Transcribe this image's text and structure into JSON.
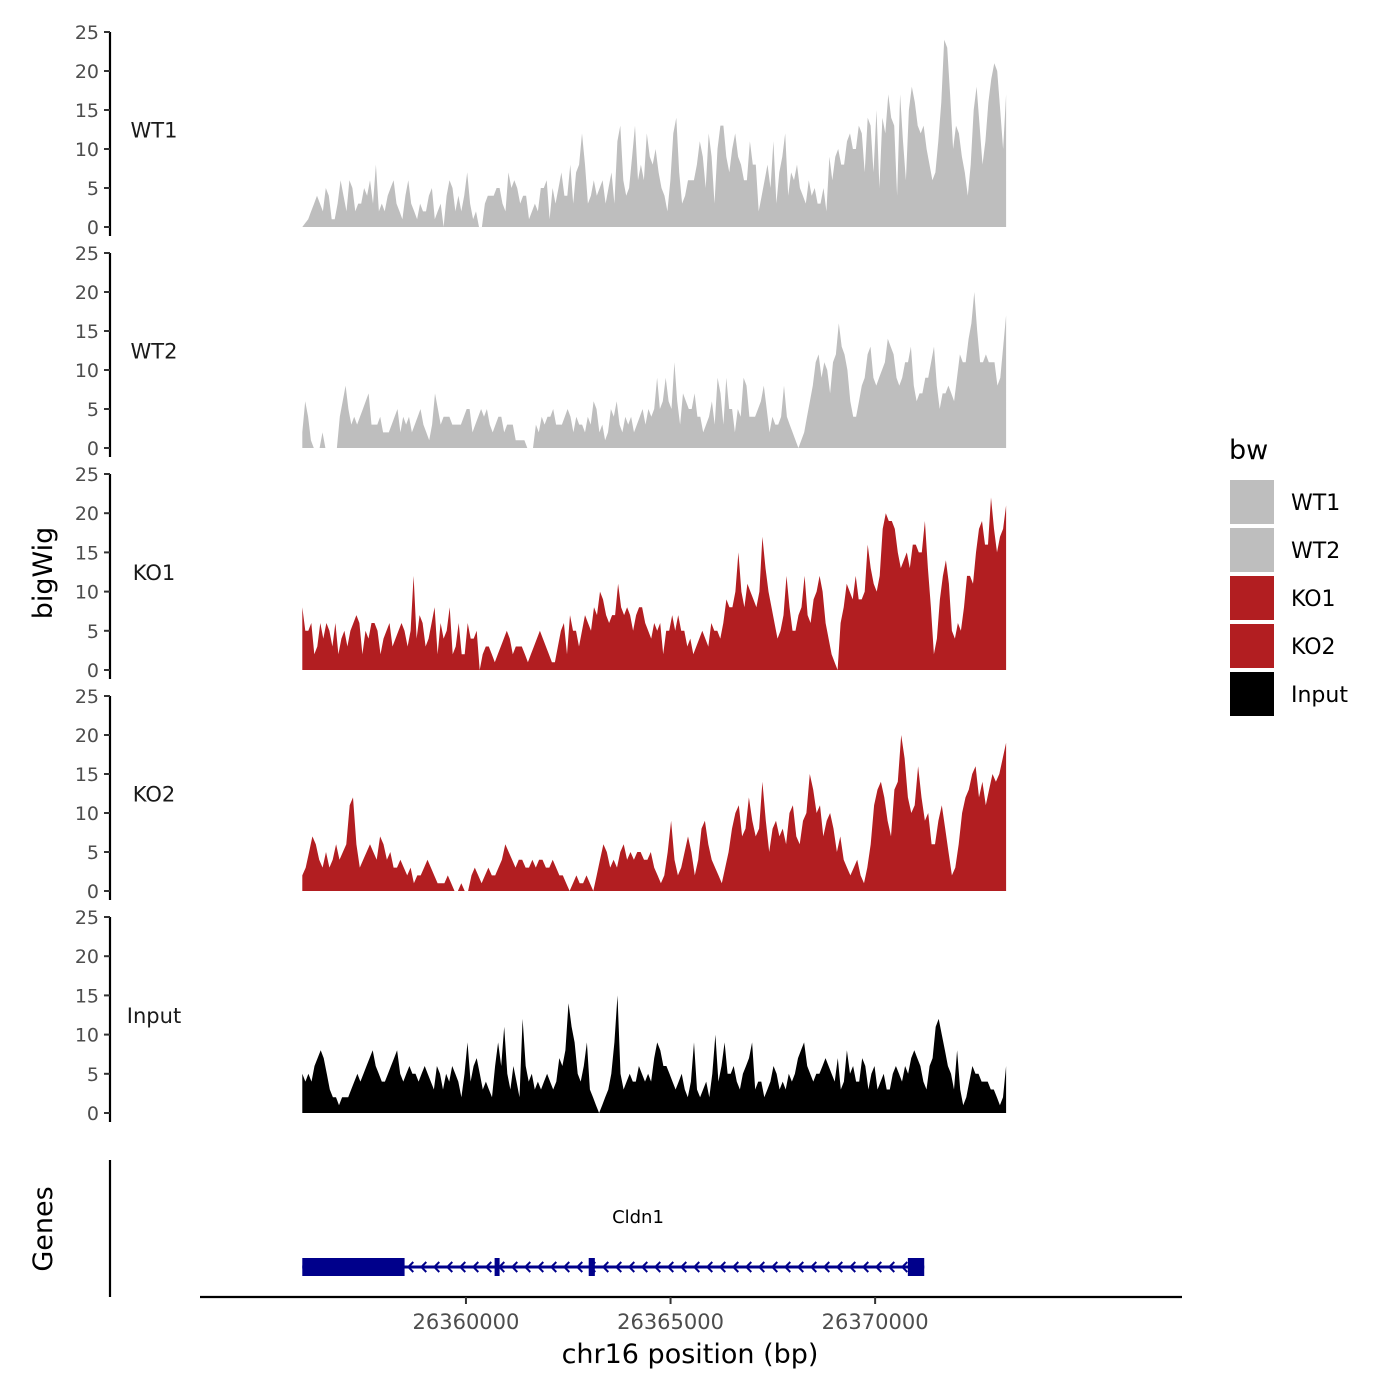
{
  "chart_data": {
    "type": "area",
    "y_axis_title": "bigWig",
    "genes_axis_title": "Genes",
    "x_axis_title": "chr16 position (bp)",
    "xlim": [
      26353500,
      26377500
    ],
    "x_ticks": [
      26360000,
      26365000,
      26370000
    ],
    "x_tick_labels": [
      "26360000",
      "26365000",
      "26370000"
    ],
    "ylim": [
      0,
      25
    ],
    "y_ticks": [
      0,
      5,
      10,
      15,
      20,
      25
    ],
    "y_tick_labels": [
      "0",
      "5",
      "10",
      "15",
      "20",
      "25"
    ],
    "legend": {
      "title": "bw",
      "entries": [
        {
          "label": "WT1",
          "color": "#bebebe"
        },
        {
          "label": "WT2",
          "color": "#bebebe"
        },
        {
          "label": "KO1",
          "color": "#b21e21"
        },
        {
          "label": "KO2",
          "color": "#b21e21"
        },
        {
          "label": "Input",
          "color": "#000000"
        }
      ]
    },
    "tracks": [
      {
        "name": "WT1",
        "color": "#bebebe",
        "x_start": 26356000,
        "x_end": 26373200,
        "values": [
          0,
          0.5,
          1,
          2,
          3,
          4,
          3,
          2,
          5,
          4,
          1,
          1,
          3,
          6,
          4,
          2,
          6,
          5,
          2,
          3,
          3,
          5,
          4,
          6,
          3,
          8,
          2,
          3,
          2,
          4,
          5,
          6,
          3,
          2,
          1,
          4,
          6,
          3,
          2,
          1,
          3,
          2,
          2,
          4,
          5,
          1,
          2,
          3,
          0,
          4,
          6,
          5,
          2,
          4,
          2,
          4,
          7,
          3,
          1,
          2,
          0,
          0,
          3,
          4,
          4,
          4,
          5,
          5,
          3,
          2,
          7,
          5,
          6,
          5,
          3,
          4,
          4,
          1,
          2,
          3,
          2,
          5,
          5,
          6,
          1,
          5,
          3,
          5,
          7,
          4,
          4,
          8,
          3,
          7,
          8,
          12,
          8,
          3,
          4,
          6,
          4,
          5,
          6,
          3,
          5,
          7,
          3,
          11,
          13,
          6,
          4,
          5,
          9,
          13,
          6,
          8,
          6,
          12,
          9,
          8,
          10,
          7,
          5,
          4,
          2,
          6,
          12,
          14,
          7,
          3,
          4,
          6,
          6,
          6,
          8,
          11,
          9,
          5,
          12,
          9,
          3,
          10,
          13,
          13,
          9,
          7,
          10,
          12,
          9,
          8,
          6,
          6,
          11,
          8,
          8,
          2,
          4,
          6,
          8,
          5,
          11,
          3,
          7,
          9,
          12,
          4,
          7,
          6,
          8,
          5,
          4,
          3,
          6,
          4,
          5,
          3,
          3,
          5,
          2,
          9,
          6,
          9,
          10,
          8,
          8,
          11,
          12,
          10,
          10,
          13,
          12,
          7,
          14,
          13,
          7,
          15,
          5,
          14,
          12,
          17,
          14,
          13,
          4,
          17,
          11,
          6,
          15,
          18,
          16,
          13,
          12,
          13,
          10,
          8,
          6,
          7,
          11,
          16,
          24,
          23,
          17,
          10,
          13,
          12,
          9,
          7,
          4,
          8,
          15,
          18,
          13,
          8,
          11,
          16,
          19,
          21,
          20,
          15,
          10,
          17
        ]
      },
      {
        "name": "WT2",
        "color": "#bebebe",
        "x_start": 26356000,
        "x_end": 26373200,
        "values": [
          2,
          6,
          4,
          1,
          0,
          0,
          0,
          2,
          0,
          0,
          0,
          0,
          0,
          4,
          6,
          8,
          5,
          3,
          4,
          3,
          4,
          5,
          6,
          7,
          3,
          3,
          3,
          4,
          2,
          2,
          2,
          3,
          4,
          5,
          2,
          4,
          3,
          4,
          2,
          3,
          4,
          5,
          3,
          2,
          1,
          3,
          7,
          5,
          3,
          4,
          4,
          4,
          3,
          3,
          3,
          3,
          4,
          5,
          5,
          2,
          3,
          4,
          5,
          4,
          5,
          3,
          2,
          3,
          4,
          4,
          2,
          3,
          3,
          3,
          1,
          1,
          1,
          1,
          0,
          0,
          0,
          3,
          2,
          4,
          3,
          4,
          4,
          5,
          3,
          3,
          3,
          4,
          5,
          4,
          2,
          4,
          3,
          3,
          2,
          4,
          3,
          6,
          5,
          2,
          3,
          1,
          2,
          5,
          4,
          6,
          3,
          2,
          4,
          3,
          4,
          2,
          3,
          4,
          5,
          3,
          5,
          4,
          5,
          9,
          5,
          6,
          9,
          6,
          5,
          11,
          6,
          3,
          7,
          6,
          5,
          5,
          7,
          4,
          4,
          2,
          3,
          4,
          6,
          3,
          9,
          7,
          3,
          9,
          5,
          5,
          2,
          5,
          4,
          9,
          8,
          4,
          4,
          4,
          5,
          6,
          8,
          5,
          2,
          4,
          3,
          3,
          4,
          8,
          4,
          3,
          2,
          1,
          0,
          1,
          2,
          4,
          6,
          8,
          11,
          12,
          9,
          11,
          10,
          7,
          11,
          12,
          16,
          13,
          12,
          10,
          6,
          4,
          4,
          6,
          8,
          9,
          12,
          13,
          9,
          8,
          9,
          10,
          11,
          14,
          13,
          12,
          9,
          8,
          9,
          11,
          11,
          13,
          8,
          6,
          7,
          7,
          9,
          9,
          11,
          13,
          8,
          5,
          7,
          7,
          8,
          7,
          6,
          9,
          12,
          11,
          11,
          14,
          16,
          20,
          15,
          11,
          11,
          12,
          11,
          11,
          11,
          8,
          9,
          13,
          17
        ]
      },
      {
        "name": "KO1",
        "color": "#b21e21",
        "x_start": 26356000,
        "x_end": 26373200,
        "values": [
          8,
          5,
          5,
          6,
          2,
          3,
          6,
          4,
          6,
          5,
          3,
          6,
          2,
          4,
          5,
          3,
          5,
          6,
          7,
          6,
          2,
          5,
          4,
          6,
          6,
          5,
          2,
          4,
          5,
          6,
          3,
          4,
          5,
          6,
          5,
          3,
          5,
          12,
          4,
          7,
          6,
          3,
          4,
          6,
          8,
          2,
          6,
          4,
          5,
          8,
          2,
          3,
          6,
          2,
          2,
          6,
          4,
          4,
          5,
          0,
          2,
          3,
          3,
          2,
          1,
          2,
          3,
          4,
          5,
          4,
          2,
          3,
          3,
          3,
          2,
          1,
          2,
          3,
          4,
          5,
          4,
          3,
          2,
          1,
          1,
          3,
          5,
          6,
          2,
          7,
          5,
          5,
          3,
          5,
          7,
          6,
          5,
          8,
          7,
          10,
          9,
          7,
          6,
          7,
          7,
          11,
          8,
          7,
          8,
          7,
          5,
          7,
          8,
          8,
          6,
          5,
          4,
          6,
          5,
          6,
          2,
          5,
          5,
          7,
          5,
          7,
          5,
          5,
          3,
          4,
          2,
          3,
          4,
          5,
          4,
          3,
          6,
          5,
          5,
          4,
          6,
          9,
          8,
          8,
          10,
          15,
          10,
          8,
          11,
          10,
          9,
          8,
          10,
          17,
          13,
          10,
          8,
          6,
          4,
          5,
          7,
          12,
          8,
          5,
          5,
          7,
          8,
          12,
          7,
          6,
          9,
          10,
          12,
          10,
          6,
          4,
          2,
          1,
          0,
          6,
          8,
          11,
          10,
          9,
          12,
          9,
          9,
          10,
          16,
          13,
          11,
          10,
          12,
          18,
          20,
          19,
          19,
          18,
          15,
          13,
          14,
          15,
          13,
          16,
          16,
          15,
          15,
          19,
          13,
          8,
          2,
          4,
          9,
          12,
          14,
          11,
          5,
          4,
          6,
          5,
          8,
          12,
          12,
          11,
          15,
          18,
          19,
          16,
          16,
          22,
          18,
          15,
          17,
          18,
          21
        ]
      },
      {
        "name": "KO2",
        "color": "#b21e21",
        "x_start": 26356000,
        "x_end": 26373200,
        "values": [
          2,
          3,
          5,
          7,
          6,
          4,
          3,
          5,
          3,
          4,
          6,
          4,
          5,
          6,
          11,
          12,
          6,
          3,
          4,
          5,
          6,
          5,
          4,
          7,
          6,
          4,
          5,
          3,
          3,
          4,
          3,
          2,
          3,
          1,
          2,
          2,
          3,
          4,
          3,
          2,
          1,
          1,
          1,
          2,
          1,
          0,
          0,
          1,
          0,
          0,
          2,
          3,
          2,
          1,
          2,
          3,
          2,
          2,
          3,
          4,
          6,
          5,
          4,
          3,
          4,
          4,
          3,
          3,
          4,
          3,
          4,
          4,
          3,
          3,
          4,
          3,
          2,
          2,
          1,
          0,
          1,
          2,
          1,
          1,
          2,
          1,
          0,
          2,
          4,
          6,
          5,
          3,
          4,
          3,
          5,
          6,
          4,
          5,
          4,
          5,
          5,
          4,
          4,
          5,
          3,
          2,
          1,
          2,
          5,
          9,
          4,
          2,
          3,
          5,
          7,
          5,
          2,
          4,
          8,
          9,
          6,
          4,
          3,
          2,
          1,
          3,
          5,
          8,
          10,
          11,
          7,
          8,
          12,
          9,
          7,
          8,
          14,
          9,
          5,
          8,
          9,
          7,
          8,
          6,
          10,
          11,
          7,
          6,
          9,
          10,
          15,
          13,
          10,
          11,
          7,
          9,
          10,
          8,
          5,
          7,
          4,
          3,
          2,
          3,
          4,
          2,
          1,
          3,
          6,
          11,
          13,
          14,
          12,
          9,
          7,
          13,
          14,
          20,
          17,
          12,
          10,
          11,
          16,
          12,
          9,
          10,
          6,
          6,
          9,
          11,
          8,
          5,
          2,
          3,
          6,
          10,
          12,
          13,
          15,
          16,
          12,
          14,
          11,
          13,
          15,
          14,
          15,
          17,
          19
        ]
      },
      {
        "name": "Input",
        "color": "#000000",
        "x_start": 26356000,
        "x_end": 26373200,
        "values": [
          5,
          4,
          5,
          4,
          6,
          7,
          8,
          7,
          5,
          3,
          2,
          2,
          1,
          2,
          2,
          2,
          3,
          4,
          5,
          4,
          5,
          6,
          7,
          8,
          6,
          5,
          4,
          4,
          5,
          6,
          7,
          8,
          5,
          4,
          5,
          6,
          5,
          5,
          4,
          5,
          6,
          5,
          4,
          3,
          6,
          5,
          3,
          5,
          4,
          6,
          5,
          4,
          2,
          5,
          9,
          4,
          6,
          7,
          5,
          3,
          4,
          3,
          2,
          6,
          9,
          6,
          11,
          5,
          3,
          6,
          4,
          2,
          12,
          6,
          4,
          5,
          3,
          4,
          3,
          4,
          5,
          4,
          3,
          4,
          7,
          6,
          8,
          14,
          11,
          9,
          5,
          4,
          6,
          9,
          3,
          2,
          1,
          0,
          1,
          2,
          3,
          5,
          9,
          15,
          5,
          3,
          4,
          5,
          4,
          4,
          6,
          5,
          4,
          5,
          4,
          7,
          9,
          8,
          6,
          6,
          5,
          4,
          3,
          4,
          5,
          3,
          2,
          4,
          9,
          3,
          2,
          3,
          4,
          2,
          5,
          10,
          4,
          6,
          9,
          5,
          5,
          6,
          4,
          3,
          5,
          6,
          7,
          9,
          3,
          4,
          4,
          2,
          3,
          4,
          6,
          5,
          3,
          4,
          3,
          5,
          4,
          5,
          7,
          8,
          9,
          6,
          5,
          4,
          5,
          5,
          6,
          7,
          6,
          5,
          4,
          7,
          3,
          4,
          8,
          5,
          6,
          4,
          4,
          7,
          6,
          3,
          5,
          6,
          3,
          4,
          5,
          3,
          3,
          5,
          6,
          5,
          4,
          6,
          5,
          7,
          8,
          7,
          6,
          4,
          3,
          6,
          7,
          11,
          12,
          10,
          8,
          6,
          5,
          3,
          8,
          3,
          1,
          2,
          4,
          6,
          5,
          5,
          4,
          4,
          4,
          3,
          3,
          2,
          1,
          2,
          6
        ]
      }
    ],
    "gene": {
      "name": "Cldn1",
      "strand": "-",
      "color": "#00008b",
      "start": 26356000,
      "end": 26371200,
      "exons": [
        [
          26356000,
          26358500
        ],
        [
          26360700,
          26360800
        ],
        [
          26363000,
          26363150
        ],
        [
          26370800,
          26371200
        ]
      ]
    }
  }
}
